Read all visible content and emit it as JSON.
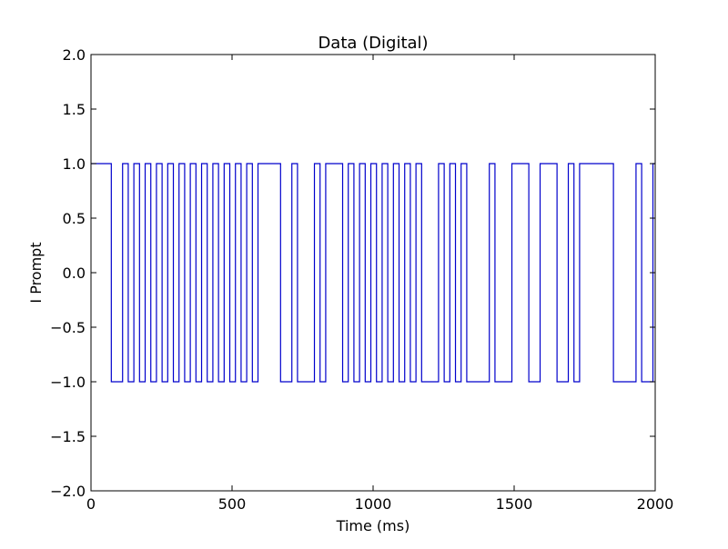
{
  "chart_data": {
    "type": "line",
    "step": "post",
    "title": "Data (Digital)",
    "xlabel": "Time (ms)",
    "ylabel": "I Prompt",
    "xlim": [
      0,
      2000
    ],
    "ylim": [
      -2.0,
      2.0
    ],
    "xticks": [
      0,
      500,
      1000,
      1500,
      2000
    ],
    "xtick_labels": [
      "0",
      "500",
      "1000",
      "1500",
      "2000"
    ],
    "yticks": [
      -2.0,
      -1.5,
      -1.0,
      -0.5,
      0.0,
      0.5,
      1.0,
      1.5,
      2.0
    ],
    "ytick_labels": [
      "−2.0",
      "−1.5",
      "−1.0",
      "−0.5",
      "0.0",
      "0.5",
      "1.0",
      "1.5",
      "2.0"
    ],
    "grid": false,
    "line_color": "#0000cc",
    "series": [
      {
        "x": [
          0,
          72,
          112,
          132,
          152,
          172,
          192,
          212,
          232,
          252,
          272,
          292,
          312,
          332,
          352,
          372,
          392,
          412,
          432,
          452,
          472,
          492,
          512,
          532,
          552,
          572,
          592,
          672,
          712,
          732,
          792,
          812,
          832,
          892,
          912,
          932,
          952,
          972,
          992,
          1012,
          1032,
          1052,
          1072,
          1092,
          1112,
          1132,
          1152,
          1172,
          1232,
          1252,
          1272,
          1292,
          1312,
          1332,
          1412,
          1432,
          1492,
          1552,
          1592,
          1652,
          1692,
          1712,
          1732,
          1852,
          1932,
          1952,
          1992,
          2000
        ],
        "y": [
          1,
          -1,
          1,
          -1,
          1,
          -1,
          1,
          -1,
          1,
          -1,
          1,
          -1,
          1,
          -1,
          1,
          -1,
          1,
          -1,
          1,
          -1,
          1,
          -1,
          1,
          -1,
          1,
          -1,
          1,
          -1,
          1,
          -1,
          1,
          -1,
          1,
          -1,
          1,
          -1,
          1,
          -1,
          1,
          -1,
          1,
          -1,
          1,
          -1,
          1,
          -1,
          1,
          -1,
          1,
          -1,
          1,
          -1,
          1,
          -1,
          1,
          -1,
          1,
          -1,
          1,
          -1,
          1,
          -1,
          1,
          -1,
          1,
          -1,
          1,
          1
        ]
      }
    ]
  }
}
